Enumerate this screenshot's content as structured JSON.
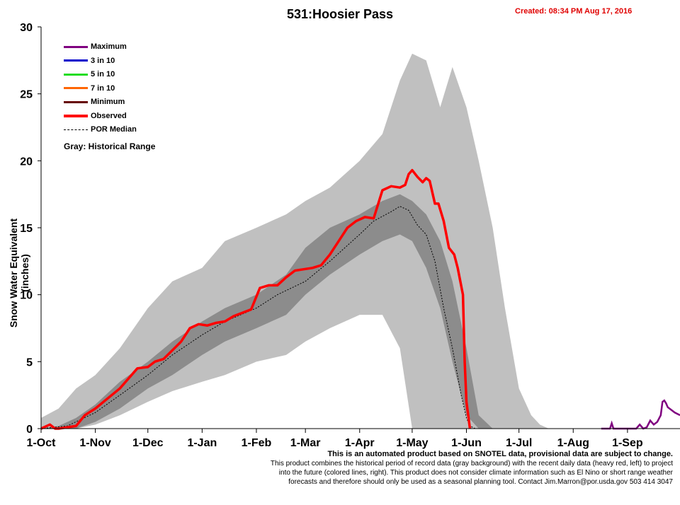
{
  "header": {
    "title": "531:Hoosier Pass",
    "created": "Created: 08:34 PM Aug 17, 2016"
  },
  "footnote": {
    "line1": "This is an automated product based on SNOTEL data, provisional data are subject to change.",
    "line2": "This product combines the historical period of record data (gray background) with the recent daily data (heavy red, left) to project",
    "line3": "into the future (colored lines, right). This product does not consider climate information such as El Nino  or short range weather",
    "line4": "forecasts and therefore should only be used as a seasonal planning tool. Contact Jim.Marron@por.usda.gov 503 414 3047"
  },
  "legend": {
    "items": [
      {
        "label": "Maximum",
        "color": "#800080",
        "style": "solid"
      },
      {
        "label": "3 in 10",
        "color": "#0000cc",
        "style": "solid"
      },
      {
        "label": "5 in 10",
        "color": "#22dd22",
        "style": "solid"
      },
      {
        "label": "7 in 10",
        "color": "#ff6600",
        "style": "solid"
      },
      {
        "label": "Minimum",
        "color": "#660000",
        "style": "solid"
      },
      {
        "label": "Observed",
        "color": "#ff0000",
        "style": "bold"
      },
      {
        "label": "POR Median",
        "color": "#000000",
        "style": "dotted"
      }
    ],
    "gray_note": "Gray: Historical Range"
  },
  "chart_data": {
    "type": "area",
    "ylabel": "Snow Water Equivalent (inches)",
    "ylim": [
      0,
      30
    ],
    "yticks": [
      0,
      5,
      10,
      15,
      20,
      25,
      30
    ],
    "xlim_days": [
      0,
      365
    ],
    "xticks": [
      {
        "label": "1-Oct",
        "day": 0
      },
      {
        "label": "1-Nov",
        "day": 31
      },
      {
        "label": "1-Dec",
        "day": 61
      },
      {
        "label": "1-Jan",
        "day": 92
      },
      {
        "label": "1-Feb",
        "day": 123
      },
      {
        "label": "1-Mar",
        "day": 151
      },
      {
        "label": "1-Apr",
        "day": 182
      },
      {
        "label": "1-May",
        "day": 212
      },
      {
        "label": "1-Jun",
        "day": 243
      },
      {
        "label": "1-Jul",
        "day": 273
      },
      {
        "label": "1-Aug",
        "day": 304
      },
      {
        "label": "1-Sep",
        "day": 335
      }
    ],
    "grid": false,
    "legend_position": "top-left",
    "colors": {
      "historical_range": "#c0c0c0",
      "interquartile": "#8c8c8c",
      "observed": "#ff0000",
      "maximum": "#800080",
      "median": "#000000"
    },
    "series": [
      {
        "name": "Gray: Historical Range",
        "kind": "band",
        "day": [
          0,
          10,
          20,
          31,
          45,
          61,
          75,
          92,
          105,
          123,
          140,
          151,
          165,
          182,
          195,
          205,
          212,
          220,
          228,
          235,
          243,
          250,
          258,
          265,
          273,
          280,
          285,
          290
        ],
        "upper": [
          0.8,
          1.5,
          3.0,
          4.0,
          6.0,
          9.0,
          11.0,
          12.0,
          14.0,
          15.0,
          16.0,
          17.0,
          18.0,
          20.0,
          22.0,
          26.0,
          28.0,
          27.5,
          24.0,
          27.0,
          24.0,
          20.0,
          15.0,
          9.0,
          3.0,
          1.0,
          0.3,
          0
        ],
        "lower": [
          0,
          0,
          0,
          0.3,
          1.0,
          2.0,
          2.8,
          3.5,
          4.0,
          5.0,
          5.5,
          6.5,
          7.5,
          8.5,
          8.5,
          6.0,
          0,
          0,
          0,
          0,
          0,
          0,
          0,
          0,
          0,
          0,
          0,
          0
        ]
      },
      {
        "name": "",
        "kind": "band",
        "day": [
          0,
          10,
          20,
          31,
          45,
          61,
          75,
          92,
          105,
          123,
          140,
          151,
          165,
          182,
          195,
          205,
          212,
          220,
          228,
          235,
          243,
          250,
          258
        ],
        "upper": [
          0,
          0.2,
          0.8,
          1.8,
          3.5,
          5.0,
          6.5,
          8.0,
          9.0,
          10.0,
          11.5,
          13.5,
          15.0,
          16.0,
          17.0,
          17.5,
          17.0,
          16.0,
          14.0,
          11.0,
          6.0,
          1.0,
          0
        ],
        "lower": [
          0,
          0,
          0,
          0.5,
          1.5,
          3.0,
          4.0,
          5.5,
          6.5,
          7.5,
          8.5,
          10.0,
          11.5,
          13.0,
          14.0,
          14.5,
          14.0,
          12.0,
          9.0,
          5.0,
          1.0,
          0,
          0
        ]
      },
      {
        "name": "POR Median",
        "kind": "line",
        "day": [
          0,
          15,
          31,
          45,
          61,
          75,
          92,
          105,
          123,
          135,
          151,
          165,
          182,
          190,
          200,
          205,
          210,
          215,
          220,
          225,
          230,
          235,
          240,
          243,
          245,
          248
        ],
        "values": [
          0,
          0.2,
          1.2,
          2.5,
          4.0,
          5.5,
          7.0,
          8.0,
          9.0,
          10.0,
          11.0,
          12.5,
          14.5,
          15.5,
          16.2,
          16.6,
          16.3,
          15.2,
          14.5,
          12.5,
          9.0,
          6.0,
          2.5,
          0.8,
          0.2,
          0
        ]
      },
      {
        "name": "Observed",
        "kind": "line",
        "day": [
          0,
          5,
          8,
          10,
          20,
          25,
          31,
          45,
          55,
          61,
          65,
          70,
          80,
          85,
          90,
          95,
          100,
          105,
          110,
          120,
          125,
          130,
          135,
          140,
          145,
          150,
          155,
          160,
          165,
          170,
          175,
          180,
          185,
          190,
          195,
          200,
          205,
          208,
          210,
          212,
          215,
          218,
          220,
          222,
          225,
          227,
          230,
          233,
          236,
          238,
          241,
          242,
          243,
          245
        ],
        "values": [
          0,
          0.3,
          0,
          0,
          0.2,
          1.0,
          1.5,
          3.0,
          4.5,
          4.6,
          5.0,
          5.2,
          6.5,
          7.5,
          7.8,
          7.7,
          7.9,
          8.0,
          8.4,
          8.9,
          10.5,
          10.7,
          10.7,
          11.3,
          11.8,
          11.9,
          12.0,
          12.2,
          13.0,
          14.0,
          15.0,
          15.5,
          15.8,
          15.7,
          17.8,
          18.1,
          18.0,
          18.2,
          19.0,
          19.3,
          18.8,
          18.4,
          18.7,
          18.5,
          16.8,
          16.8,
          15.5,
          13.5,
          13.0,
          12.0,
          10.0,
          5.0,
          2.0,
          0
        ]
      },
      {
        "name": "Maximum",
        "kind": "line",
        "day": [
          320,
          325,
          326,
          327,
          340,
          342,
          344,
          346,
          348,
          350,
          352,
          354,
          355,
          356,
          357,
          358,
          360,
          362,
          365
        ],
        "values": [
          0,
          0,
          0.4,
          0,
          0,
          0.3,
          0,
          0.1,
          0.6,
          0.3,
          0.5,
          1.0,
          2.0,
          2.1,
          1.9,
          1.6,
          1.4,
          1.2,
          1.0
        ]
      }
    ]
  }
}
